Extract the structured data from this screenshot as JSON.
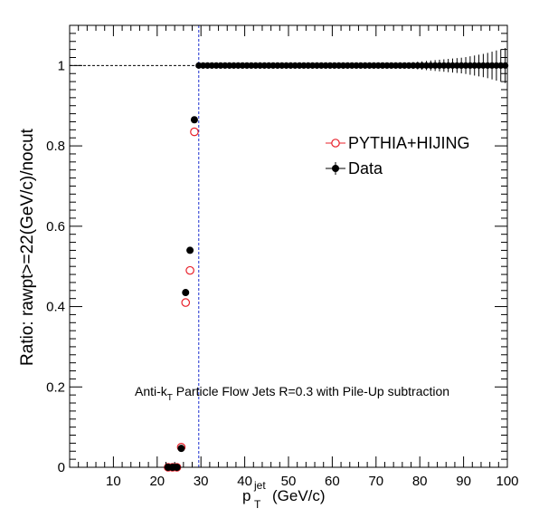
{
  "chart_data": {
    "type": "scatter",
    "xlabel_main": "p",
    "xlabel_sub": "T",
    "xlabel_sup": "jet",
    "xlabel_unit": "(GeV/c)",
    "ylabel": "Ratio: rawpt>=22(GeV/c)/nocut",
    "annotation_pre": "Anti-k",
    "annotation_sub": "T",
    "annotation_post": " Particle Flow Jets R=0.3 with Pile-Up subtraction",
    "xlim": [
      0,
      100
    ],
    "ylim": [
      0,
      1.1
    ],
    "x_ticks": [
      10,
      20,
      30,
      40,
      50,
      60,
      70,
      80,
      90,
      100
    ],
    "y_ticks": [
      0,
      0.2,
      0.4,
      0.6,
      0.8,
      1
    ],
    "y_tick_labels": [
      "0",
      "0.2",
      "0.4",
      "0.6",
      "0.8",
      "1"
    ],
    "reference_line_y": 1,
    "cut_line_x": 29.5,
    "legend": {
      "position": "top-right"
    },
    "series": [
      {
        "name": "PYTHIA+HIJING",
        "marker": "open-circle",
        "color": "#e8202a",
        "x": [
          22.5,
          23.5,
          24.5,
          25.5,
          26.5,
          27.5,
          28.5,
          29.5
        ],
        "y": [
          0.0,
          0.0,
          0.0,
          0.05,
          0.41,
          0.49,
          0.835,
          1.0
        ]
      },
      {
        "name": "Data",
        "marker": "filled-circle",
        "color": "#000000",
        "x": [
          22.5,
          23.5,
          24.5,
          25.5,
          26.5,
          27.5,
          28.5
        ],
        "y": [
          0.0,
          0.0,
          0.0,
          0.047,
          0.435,
          0.54,
          0.865
        ]
      }
    ],
    "plateau": {
      "x_from": 29.5,
      "x_to": 99.5,
      "y": 1.0
    },
    "error_bar_growth": [
      {
        "x": 70,
        "err": 0.002
      },
      {
        "x": 75,
        "err": 0.005
      },
      {
        "x": 80,
        "err": 0.01
      },
      {
        "x": 85,
        "err": 0.015
      },
      {
        "x": 90,
        "err": 0.02
      },
      {
        "x": 95,
        "err": 0.03
      },
      {
        "x": 100,
        "err": 0.045
      }
    ]
  }
}
